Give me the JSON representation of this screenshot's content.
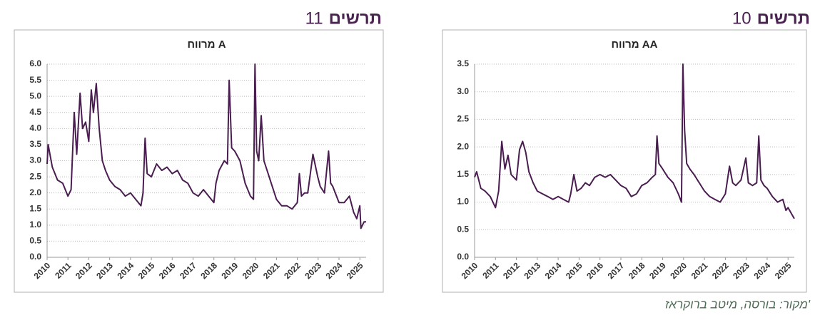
{
  "chart_data": [
    {
      "type": "line",
      "figure_word": "תרשים",
      "figure_number": 10,
      "title": "מרווח AA",
      "color": "#4a1d50",
      "grid": true,
      "xlim": [
        2010,
        2025.3
      ],
      "xticks": [
        2010,
        2011,
        2012,
        2013,
        2014,
        2015,
        2016,
        2017,
        2018,
        2019,
        2020,
        2021,
        2022,
        2023,
        2024,
        2025
      ],
      "ylim": [
        0,
        3.5
      ],
      "yticks": [
        {
          "value": 0,
          "label": "0.0"
        },
        0.5,
        {
          "value": 1,
          "label": "1.0"
        },
        1.5,
        {
          "value": 2,
          "label": "2.0"
        },
        2.5,
        {
          "value": 3,
          "label": "3.0"
        },
        3.5
      ],
      "x": [
        2010.0,
        2010.1,
        2010.3,
        2010.5,
        2010.75,
        2011.0,
        2011.15,
        2011.3,
        2011.45,
        2011.6,
        2011.75,
        2012.0,
        2012.15,
        2012.3,
        2012.45,
        2012.6,
        2012.8,
        2013.0,
        2013.25,
        2013.5,
        2013.75,
        2014.0,
        2014.25,
        2014.5,
        2014.6,
        2014.75,
        2014.9,
        2015.1,
        2015.3,
        2015.5,
        2015.75,
        2016.0,
        2016.25,
        2016.5,
        2016.75,
        2017.0,
        2017.25,
        2017.5,
        2017.75,
        2018.0,
        2018.25,
        2018.5,
        2018.65,
        2018.73,
        2018.82,
        2019.0,
        2019.25,
        2019.5,
        2019.75,
        2019.9,
        2019.97,
        2020.05,
        2020.15,
        2020.3,
        2020.5,
        2020.75,
        2021.0,
        2021.25,
        2021.5,
        2021.75,
        2022.0,
        2022.2,
        2022.35,
        2022.5,
        2022.75,
        2022.98,
        2023.1,
        2023.3,
        2023.5,
        2023.6,
        2023.7,
        2023.85,
        2024.0,
        2024.25,
        2024.5,
        2024.75,
        2024.9,
        2025.0,
        2025.15,
        2025.3
      ],
      "values": [
        1.45,
        1.55,
        1.25,
        1.2,
        1.1,
        0.9,
        1.2,
        2.1,
        1.6,
        1.85,
        1.5,
        1.4,
        1.95,
        2.1,
        1.9,
        1.55,
        1.35,
        1.2,
        1.15,
        1.1,
        1.05,
        1.1,
        1.05,
        1.0,
        1.15,
        1.5,
        1.2,
        1.25,
        1.35,
        1.3,
        1.45,
        1.5,
        1.45,
        1.5,
        1.4,
        1.3,
        1.25,
        1.1,
        1.15,
        1.3,
        1.35,
        1.45,
        1.5,
        2.2,
        1.7,
        1.6,
        1.45,
        1.35,
        1.15,
        1.0,
        3.5,
        2.3,
        1.7,
        1.6,
        1.5,
        1.35,
        1.2,
        1.1,
        1.05,
        1.0,
        1.15,
        1.65,
        1.35,
        1.3,
        1.4,
        1.8,
        1.35,
        1.3,
        1.35,
        2.2,
        1.4,
        1.3,
        1.25,
        1.1,
        1.0,
        1.05,
        0.85,
        0.9,
        0.8,
        0.7
      ]
    },
    {
      "type": "line",
      "figure_word": "תרשים",
      "figure_number": 11,
      "title": "מרווח A",
      "color": "#4a1d50",
      "grid": true,
      "xlim": [
        2010,
        2025.3
      ],
      "xticks": [
        2010,
        2011,
        2012,
        2013,
        2014,
        2015,
        2016,
        2017,
        2018,
        2019,
        2020,
        2021,
        2022,
        2023,
        2024,
        2025
      ],
      "ylim": [
        0,
        6
      ],
      "yticks": [
        {
          "value": 0,
          "label": "0.0"
        },
        0.5,
        {
          "value": 1,
          "label": "1.0"
        },
        1.5,
        {
          "value": 2,
          "label": "2.0"
        },
        2.5,
        {
          "value": 3,
          "label": "3.0"
        },
        3.5,
        {
          "value": 4,
          "label": "4.0"
        },
        4.5,
        {
          "value": 5,
          "label": "5.0"
        },
        5.5,
        {
          "value": 6,
          "label": "6.0"
        }
      ],
      "x": [
        2010.0,
        2010.05,
        2010.25,
        2010.5,
        2010.75,
        2011.0,
        2011.15,
        2011.3,
        2011.42,
        2011.58,
        2011.7,
        2011.85,
        2012.0,
        2012.12,
        2012.22,
        2012.36,
        2012.5,
        2012.65,
        2012.8,
        2013.0,
        2013.25,
        2013.5,
        2013.75,
        2014.0,
        2014.25,
        2014.5,
        2014.6,
        2014.7,
        2014.8,
        2015.0,
        2015.25,
        2015.5,
        2015.75,
        2016.0,
        2016.25,
        2016.5,
        2016.75,
        2017.0,
        2017.25,
        2017.5,
        2017.75,
        2018.0,
        2018.1,
        2018.25,
        2018.5,
        2018.65,
        2018.73,
        2018.85,
        2019.0,
        2019.25,
        2019.5,
        2019.75,
        2019.9,
        2019.97,
        2020.05,
        2020.15,
        2020.27,
        2020.4,
        2020.6,
        2020.8,
        2021.0,
        2021.25,
        2021.5,
        2021.75,
        2022.0,
        2022.1,
        2022.2,
        2022.35,
        2022.5,
        2022.75,
        2022.98,
        2023.1,
        2023.3,
        2023.5,
        2023.6,
        2023.7,
        2024.0,
        2024.25,
        2024.5,
        2024.7,
        2024.85,
        2025.0,
        2025.05,
        2025.2,
        2025.3
      ],
      "values": [
        2.9,
        3.5,
        2.8,
        2.4,
        2.3,
        1.9,
        2.1,
        4.5,
        3.2,
        5.1,
        4.0,
        4.2,
        3.6,
        5.2,
        4.5,
        5.4,
        4.0,
        3.0,
        2.7,
        2.4,
        2.2,
        2.1,
        1.9,
        2.0,
        1.8,
        1.6,
        2.0,
        3.7,
        2.6,
        2.5,
        2.9,
        2.7,
        2.8,
        2.6,
        2.7,
        2.4,
        2.3,
        2.0,
        1.9,
        2.1,
        1.9,
        1.7,
        2.3,
        2.7,
        3.0,
        2.9,
        5.5,
        3.4,
        3.3,
        3.0,
        2.3,
        1.9,
        1.8,
        6.0,
        3.3,
        3.0,
        4.4,
        3.0,
        2.6,
        2.2,
        1.8,
        1.6,
        1.6,
        1.5,
        1.7,
        2.6,
        1.9,
        2.0,
        2.0,
        3.2,
        2.5,
        2.2,
        2.0,
        3.3,
        2.3,
        2.2,
        1.7,
        1.7,
        1.9,
        1.4,
        1.2,
        1.6,
        0.9,
        1.1,
        1.1
      ]
    }
  ],
  "source": "מקור: בורסה, מיטב ברוקראז'"
}
